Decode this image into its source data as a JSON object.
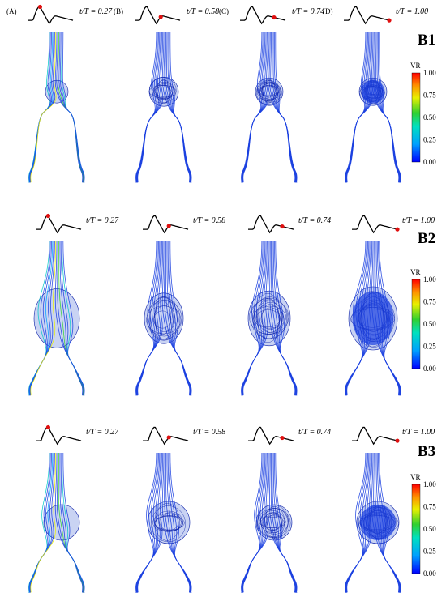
{
  "figure": {
    "rows": [
      {
        "label": "B1",
        "panels": [
          {
            "letter": "(A)",
            "time_label": "t/T = 0.27",
            "time_fraction": 0.27
          },
          {
            "letter": "(B)",
            "time_label": "t/T = 0.58",
            "time_fraction": 0.58
          },
          {
            "letter": "(C)",
            "time_label": "t/T = 0.74",
            "time_fraction": 0.74
          },
          {
            "letter": "(D)",
            "time_label": "t/T = 1.00",
            "time_fraction": 1.0
          }
        ],
        "colorbar": {
          "title": "VR",
          "ticks": [
            "1.00",
            "0.75",
            "0.50",
            "0.25",
            "0.00"
          ]
        }
      },
      {
        "label": "B2",
        "panels": [
          {
            "letter": "",
            "time_label": "t/T = 0.27",
            "time_fraction": 0.27
          },
          {
            "letter": "",
            "time_label": "t/T = 0.58",
            "time_fraction": 0.58
          },
          {
            "letter": "",
            "time_label": "t/T = 0.74",
            "time_fraction": 0.74
          },
          {
            "letter": "",
            "time_label": "t/T = 1.00",
            "time_fraction": 1.0
          }
        ],
        "colorbar": {
          "title": "VR",
          "ticks": [
            "1.00",
            "0.75",
            "0.50",
            "0.25",
            "0.00"
          ]
        }
      },
      {
        "label": "B3",
        "panels": [
          {
            "letter": "",
            "time_label": "t/T = 0.27",
            "time_fraction": 0.27
          },
          {
            "letter": "",
            "time_label": "t/T = 0.58",
            "time_fraction": 0.58
          },
          {
            "letter": "",
            "time_label": "t/T = 0.74",
            "time_fraction": 0.74
          },
          {
            "letter": "",
            "time_label": "t/T = 1.00",
            "time_fraction": 1.0
          }
        ],
        "colorbar": {
          "title": "VR",
          "ticks": [
            "1.00",
            "0.75",
            "0.50",
            "0.25",
            "0.00"
          ]
        }
      }
    ],
    "colors": {
      "streamline_blue": "#1a3fe0",
      "streamline_dark": "#0a1fa8",
      "vessel_fill": "#c9d3f3",
      "marker": "#e01010",
      "colormap": [
        "#0000ff",
        "#00a0ff",
        "#00e0a0",
        "#30d030",
        "#f0f000",
        "#ff9000",
        "#ff0000"
      ]
    }
  }
}
